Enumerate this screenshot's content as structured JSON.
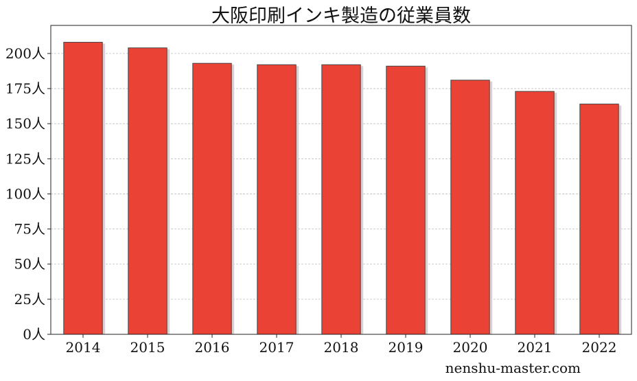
{
  "chart_data": {
    "type": "bar",
    "title": "大阪印刷インキ製造の従業員数",
    "categories": [
      "2014",
      "2015",
      "2016",
      "2017",
      "2018",
      "2019",
      "2020",
      "2021",
      "2022"
    ],
    "values": [
      208,
      204,
      193,
      192,
      192,
      191,
      181,
      173,
      164
    ],
    "y_ticks": [
      "0人",
      "25人",
      "50人",
      "75人",
      "100人",
      "125人",
      "150人",
      "175人",
      "200人"
    ],
    "ylim": [
      0,
      220
    ],
    "xlabel": "",
    "ylabel": "",
    "grid": true,
    "bar_color": "#ea4335",
    "edge_color": "#444444"
  },
  "watermark": "nenshu-master.com"
}
